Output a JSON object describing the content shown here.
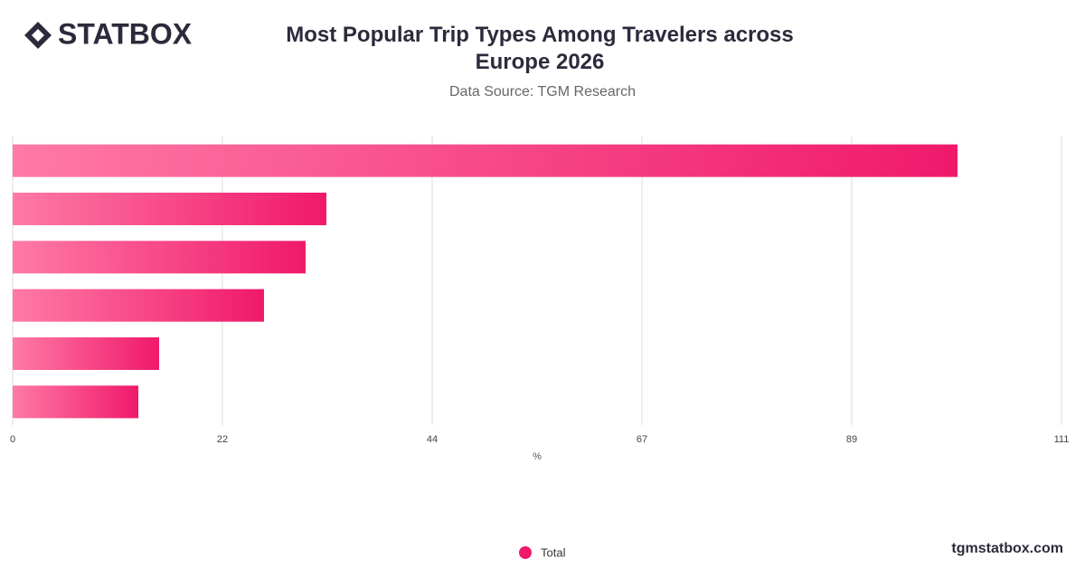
{
  "logo": "STATBOX",
  "footer": "tgmstatbox.com",
  "chart_data": {
    "type": "hbar",
    "title": "Most Popular Trip Types Among Travelers across Europe 2026",
    "subtitle": "Data Source: TGM Research",
    "x_label": "%",
    "categories": [
      null,
      null,
      null,
      null,
      null,
      null
    ],
    "series": [
      {
        "name": "Total",
        "color": "#f0196b",
        "values": [
          100,
          33.2,
          31,
          26.6,
          15.5,
          13.3
        ]
      }
    ],
    "xlim": [
      0,
      111
    ],
    "xticks": [
      0,
      {
        "value": 22.2,
        "label": "22"
      },
      {
        "value": 44.4,
        "label": "44"
      },
      {
        "value": 66.6,
        "label": "67"
      },
      {
        "value": 88.8,
        "label": "89"
      },
      111
    ],
    "grid": true,
    "legend": "bottom"
  }
}
